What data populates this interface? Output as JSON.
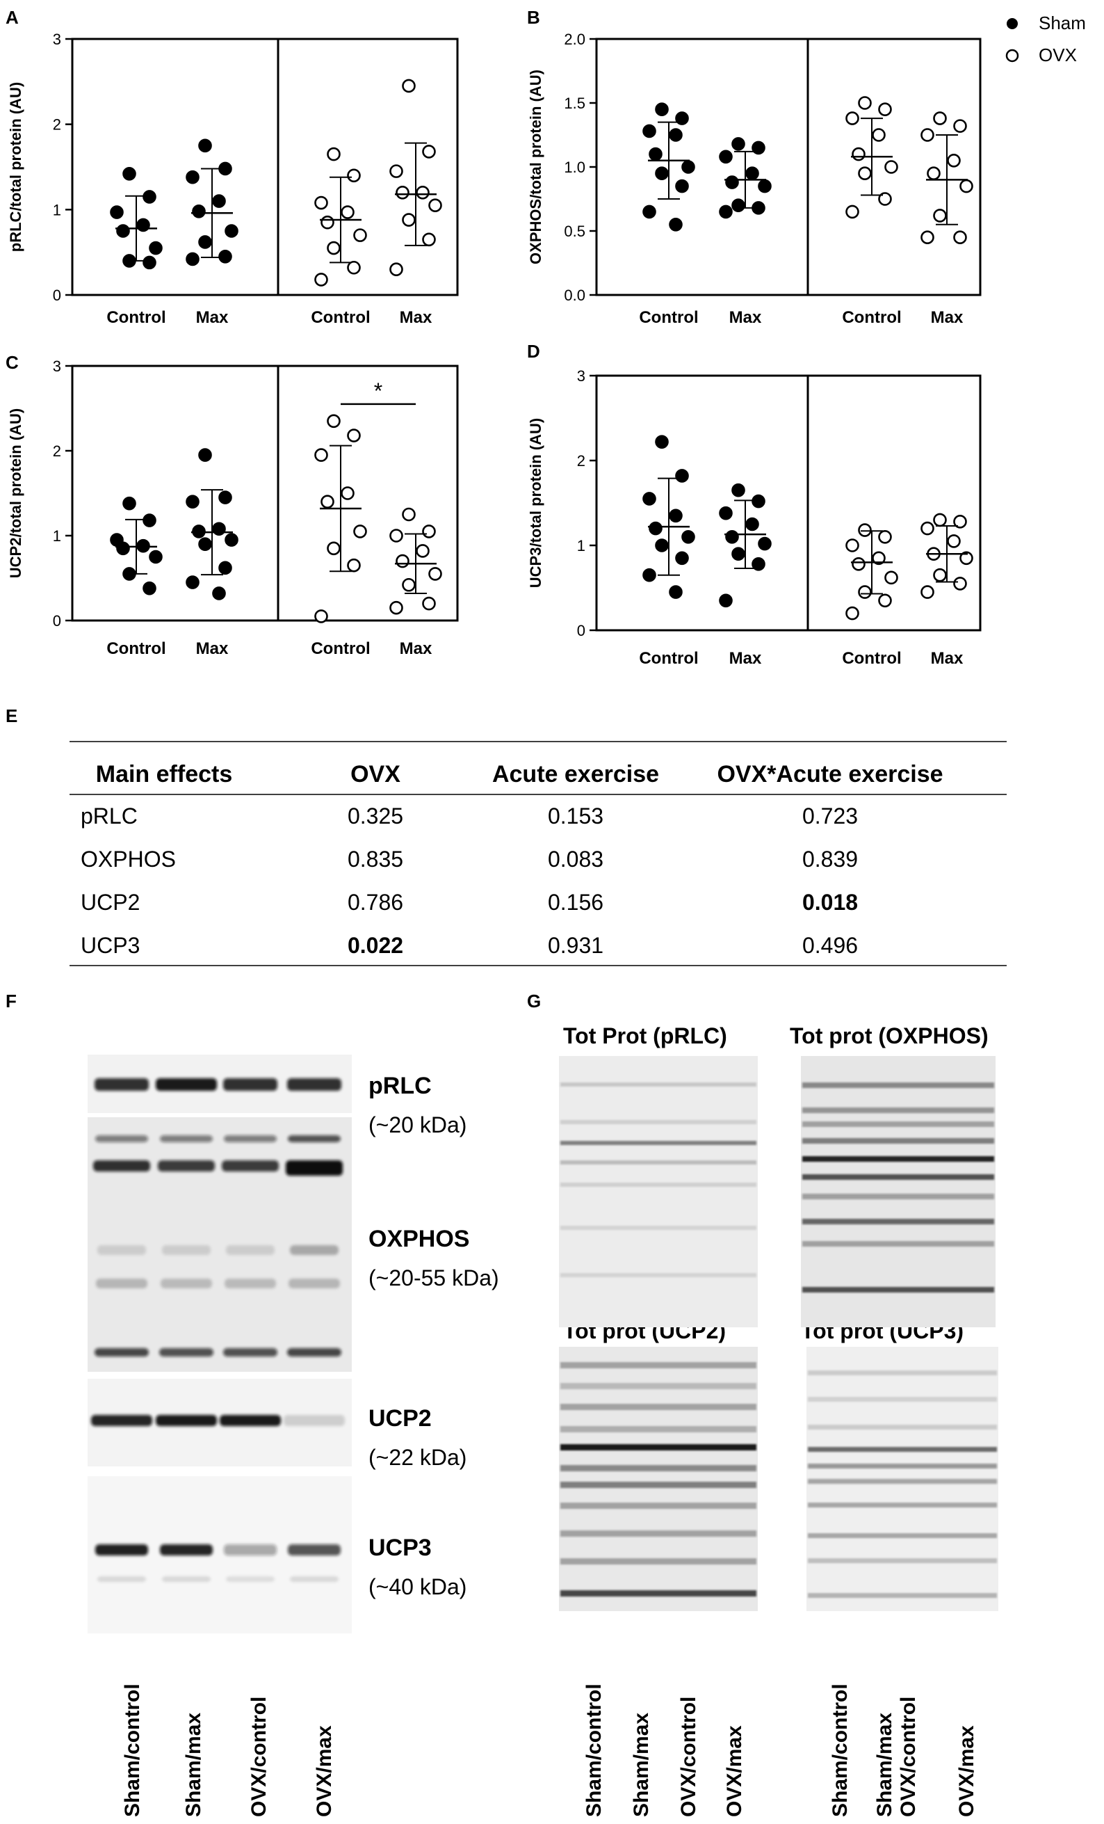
{
  "panels": {
    "A": "A",
    "B": "B",
    "C": "C",
    "D": "D",
    "E": "E",
    "F": "F",
    "G": "G"
  },
  "legend": {
    "sham": "Sham",
    "ovx": "OVX"
  },
  "chart_data": [
    {
      "id": "A",
      "type": "scatter",
      "ylabel": "pRLC/total protein (AU)",
      "ylim": [
        0,
        3
      ],
      "yticks": [
        "0",
        "1",
        "2",
        "3"
      ],
      "categories": [
        "Control",
        "Max",
        "Control",
        "Max"
      ],
      "groups": [
        {
          "name": "Sham",
          "filled": true,
          "category": 0,
          "mean": 0.78,
          "sd": 0.38,
          "values": [
            1.42,
            1.15,
            0.97,
            0.82,
            0.75,
            0.55,
            0.4,
            0.38
          ]
        },
        {
          "name": "Sham",
          "filled": true,
          "category": 1,
          "mean": 0.96,
          "sd": 0.52,
          "values": [
            1.75,
            1.48,
            1.38,
            1.1,
            0.98,
            0.75,
            0.62,
            0.45,
            0.42
          ]
        },
        {
          "name": "OVX",
          "filled": false,
          "category": 2,
          "mean": 0.88,
          "sd": 0.5,
          "values": [
            1.65,
            1.4,
            1.08,
            0.97,
            0.85,
            0.7,
            0.55,
            0.32,
            0.18
          ]
        },
        {
          "name": "OVX",
          "filled": false,
          "category": 3,
          "mean": 1.18,
          "sd": 0.6,
          "values": [
            2.45,
            1.68,
            1.45,
            1.2,
            1.2,
            1.05,
            0.88,
            0.65,
            0.3
          ]
        }
      ]
    },
    {
      "id": "B",
      "type": "scatter",
      "ylabel": "OXPHOS/total protein (AU)",
      "ylim": [
        0,
        2
      ],
      "yticks": [
        "0.0",
        "0.5",
        "1.0",
        "1.5",
        "2.0"
      ],
      "categories": [
        "Control",
        "Max",
        "Control",
        "Max"
      ],
      "groups": [
        {
          "name": "Sham",
          "filled": true,
          "category": 0,
          "mean": 1.05,
          "sd": 0.3,
          "values": [
            1.45,
            1.38,
            1.28,
            1.25,
            1.1,
            1.0,
            0.95,
            0.85,
            0.65,
            0.55
          ]
        },
        {
          "name": "Sham",
          "filled": true,
          "category": 1,
          "mean": 0.9,
          "sd": 0.22,
          "values": [
            1.18,
            1.15,
            1.08,
            0.95,
            0.88,
            0.85,
            0.7,
            0.68,
            0.65
          ]
        },
        {
          "name": "OVX",
          "filled": false,
          "category": 2,
          "mean": 1.08,
          "sd": 0.3,
          "values": [
            1.5,
            1.45,
            1.38,
            1.25,
            1.1,
            1.0,
            0.95,
            0.75,
            0.65
          ]
        },
        {
          "name": "OVX",
          "filled": false,
          "category": 3,
          "mean": 0.9,
          "sd": 0.35,
          "values": [
            1.38,
            1.32,
            1.25,
            1.05,
            0.95,
            0.85,
            0.62,
            0.45,
            0.45
          ]
        }
      ]
    },
    {
      "id": "C",
      "type": "scatter",
      "ylabel": "UCP2/total protein (AU)",
      "ylim": [
        0,
        3
      ],
      "yticks": [
        "0",
        "1",
        "2",
        "3"
      ],
      "categories": [
        "Control",
        "Max",
        "Control",
        "Max"
      ],
      "significance": {
        "between": [
          2,
          3
        ],
        "label": "*",
        "y": 2.55
      },
      "groups": [
        {
          "name": "Sham",
          "filled": true,
          "category": 0,
          "mean": 0.87,
          "sd": 0.32,
          "values": [
            1.38,
            1.18,
            0.95,
            0.88,
            0.85,
            0.75,
            0.55,
            0.38
          ]
        },
        {
          "name": "Sham",
          "filled": true,
          "category": 1,
          "mean": 1.04,
          "sd": 0.5,
          "values": [
            1.95,
            1.45,
            1.4,
            1.08,
            1.05,
            0.95,
            0.9,
            0.62,
            0.45,
            0.32
          ]
        },
        {
          "name": "OVX",
          "filled": false,
          "category": 2,
          "mean": 1.32,
          "sd": 0.74,
          "values": [
            2.35,
            2.18,
            1.95,
            1.5,
            1.4,
            1.05,
            0.85,
            0.65,
            0.05
          ]
        },
        {
          "name": "OVX",
          "filled": false,
          "category": 3,
          "mean": 0.67,
          "sd": 0.35,
          "values": [
            1.25,
            1.05,
            1.0,
            0.82,
            0.7,
            0.55,
            0.42,
            0.2,
            0.15
          ]
        }
      ]
    },
    {
      "id": "D",
      "type": "scatter",
      "ylabel": "UCP3/total protein (AU)",
      "ylim": [
        0,
        3
      ],
      "yticks": [
        "0",
        "1",
        "2",
        "3"
      ],
      "categories": [
        "Control",
        "Max",
        "Control",
        "Max"
      ],
      "groups": [
        {
          "name": "Sham",
          "filled": true,
          "category": 0,
          "mean": 1.22,
          "sd": 0.57,
          "values": [
            2.22,
            1.82,
            1.55,
            1.35,
            1.2,
            1.1,
            1.0,
            0.85,
            0.65,
            0.45
          ]
        },
        {
          "name": "Sham",
          "filled": true,
          "category": 1,
          "mean": 1.13,
          "sd": 0.4,
          "values": [
            1.65,
            1.52,
            1.38,
            1.25,
            1.1,
            1.02,
            0.9,
            0.78,
            0.35
          ]
        },
        {
          "name": "OVX",
          "filled": false,
          "category": 2,
          "mean": 0.8,
          "sd": 0.37,
          "values": [
            1.18,
            1.1,
            1.0,
            0.85,
            0.78,
            0.62,
            0.45,
            0.35,
            0.2
          ]
        },
        {
          "name": "OVX",
          "filled": false,
          "category": 3,
          "mean": 0.9,
          "sd": 0.33,
          "values": [
            1.3,
            1.28,
            1.2,
            1.05,
            0.9,
            0.85,
            0.65,
            0.55,
            0.45
          ]
        }
      ]
    }
  ],
  "table": {
    "headers": [
      "Main effects",
      "OVX",
      "Acute exercise",
      "OVX*Acute exercise"
    ],
    "rows": [
      {
        "cells": [
          "pRLC",
          "0.325",
          "0.153",
          "0.723"
        ],
        "bold": [
          false,
          false,
          false,
          false
        ]
      },
      {
        "cells": [
          "OXPHOS",
          "0.835",
          "0.083",
          "0.839"
        ],
        "bold": [
          false,
          false,
          false,
          false
        ]
      },
      {
        "cells": [
          "UCP2",
          "0.786",
          "0.156",
          "0.018"
        ],
        "bold": [
          false,
          false,
          false,
          true
        ]
      },
      {
        "cells": [
          "UCP3",
          "0.022",
          "0.931",
          "0.496"
        ],
        "bold": [
          false,
          true,
          false,
          false
        ]
      }
    ]
  },
  "blotF": {
    "bands": [
      {
        "name": "pRLC",
        "size": "(~20 kDa)"
      },
      {
        "name": "OXPHOS",
        "size": "(~20-55 kDa)"
      },
      {
        "name": "UCP2",
        "size": "(~22 kDa)"
      },
      {
        "name": "UCP3",
        "size": "(~40 kDa)"
      }
    ],
    "lanes": [
      "Sham/control",
      "Sham/max",
      "OVX/control",
      "OVX/max"
    ]
  },
  "blotG": {
    "titles": [
      "Tot Prot (pRLC)",
      "Tot prot (OXPHOS)",
      "Tot prot (UCP2)",
      "Tot prot (UCP3)"
    ],
    "lanes_left": [
      "Sham/control",
      "Sham/max",
      "OVX/control",
      "OVX/max"
    ],
    "lanes_right": [
      "Sham/control",
      "Sham/max",
      "OVX/control",
      "OVX/max"
    ]
  }
}
